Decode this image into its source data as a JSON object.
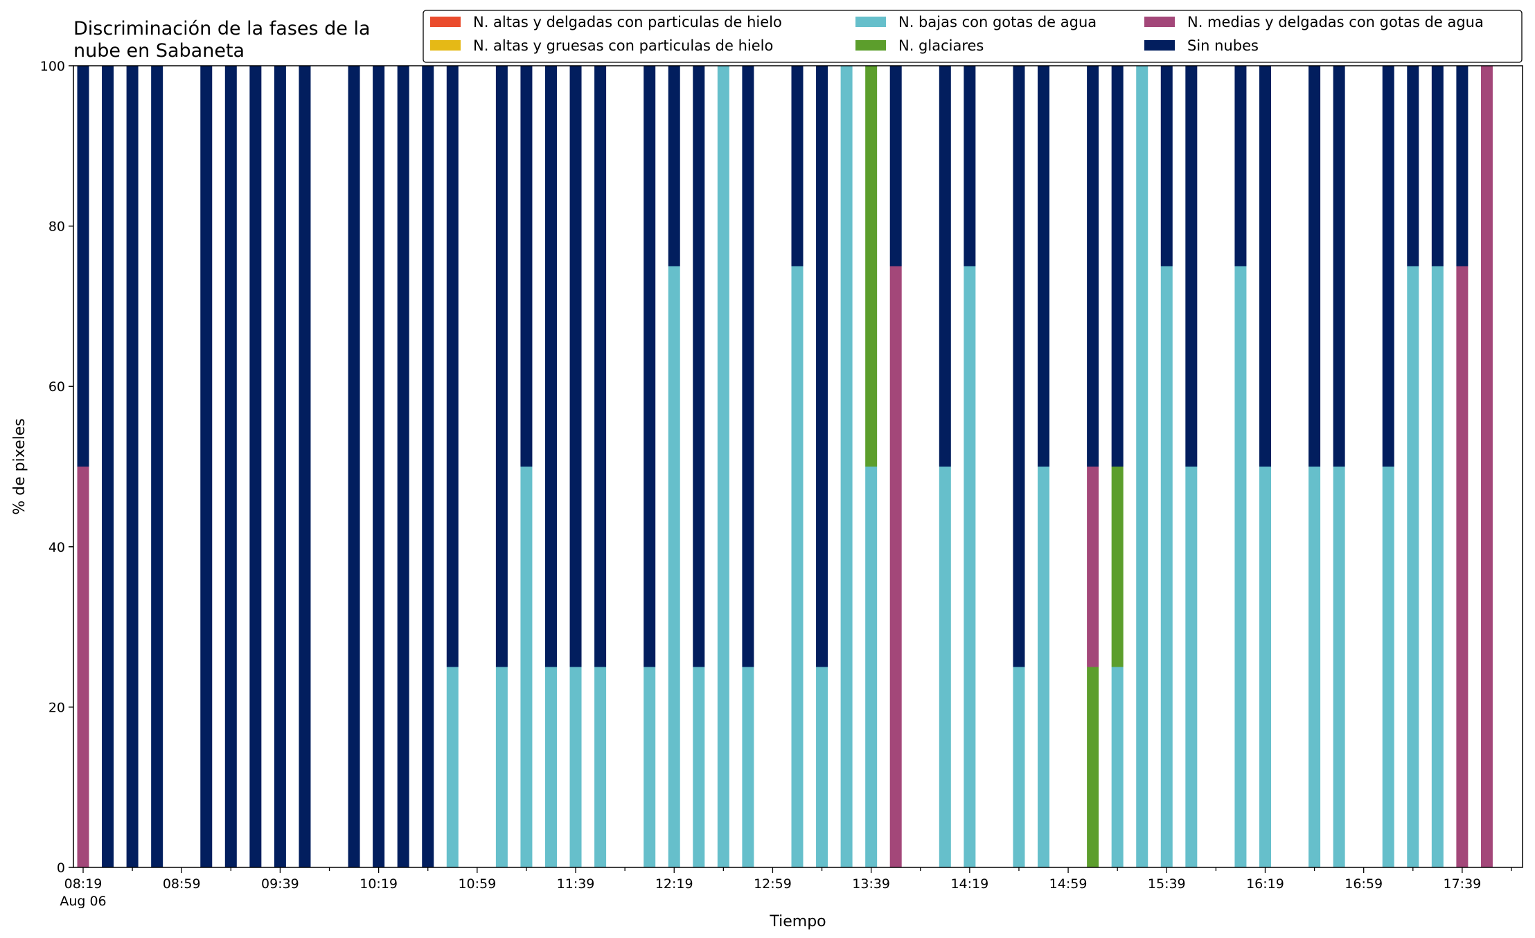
{
  "chart_data": {
    "type": "bar",
    "stacked": true,
    "title": "Discriminación de la fases de la\nnube en Sabaneta",
    "xlabel": "Tiempo",
    "ylabel": "% de pixeles",
    "ylim": [
      0,
      100
    ],
    "y_ticks": [
      0,
      20,
      40,
      60,
      80,
      100
    ],
    "x_tick_labels": [
      {
        "time": "08:19",
        "sub": "Aug 06"
      },
      {
        "time": "08:59",
        "sub": ""
      },
      {
        "time": "09:39",
        "sub": ""
      },
      {
        "time": "10:19",
        "sub": ""
      },
      {
        "time": "10:59",
        "sub": ""
      },
      {
        "time": "11:39",
        "sub": ""
      },
      {
        "time": "12:19",
        "sub": ""
      },
      {
        "time": "12:59",
        "sub": ""
      },
      {
        "time": "13:39",
        "sub": ""
      },
      {
        "time": "14:19",
        "sub": ""
      },
      {
        "time": "14:59",
        "sub": ""
      },
      {
        "time": "15:39",
        "sub": ""
      },
      {
        "time": "16:19",
        "sub": ""
      },
      {
        "time": "16:59",
        "sub": ""
      },
      {
        "time": "17:39",
        "sub": ""
      }
    ],
    "x_start": "08:19",
    "x_end": "18:00",
    "minor_tick_interval_minutes": 20,
    "legend_position": "top-right",
    "legend": [
      {
        "name": "N. altas y delgadas con particulas de hielo",
        "color": "#ea4c2d"
      },
      {
        "name": "N. altas y gruesas con particulas de hielo",
        "color": "#e5b916"
      },
      {
        "name": "N. bajas con gotas de agua",
        "color": "#66bfcb"
      },
      {
        "name": "N. glaciares",
        "color": "#5c9e2c"
      },
      {
        "name": "N. medias y delgadas con gotas de agua",
        "color": "#a34779"
      },
      {
        "name": "Sin nubes",
        "color": "#021e5e"
      }
    ],
    "bars": [
      {
        "time": "08:19",
        "segments": [
          [
            "N. medias y delgadas con gotas de agua",
            50
          ],
          [
            "Sin nubes",
            50
          ]
        ]
      },
      {
        "time": "08:29",
        "segments": [
          [
            "Sin nubes",
            100
          ]
        ]
      },
      {
        "time": "08:39",
        "segments": [
          [
            "Sin nubes",
            100
          ]
        ]
      },
      {
        "time": "08:49",
        "segments": [
          [
            "Sin nubes",
            100
          ]
        ]
      },
      {
        "time": "09:09",
        "segments": [
          [
            "Sin nubes",
            100
          ]
        ]
      },
      {
        "time": "09:19",
        "segments": [
          [
            "Sin nubes",
            100
          ]
        ]
      },
      {
        "time": "09:29",
        "segments": [
          [
            "Sin nubes",
            100
          ]
        ]
      },
      {
        "time": "09:39",
        "segments": [
          [
            "Sin nubes",
            100
          ]
        ]
      },
      {
        "time": "09:49",
        "segments": [
          [
            "Sin nubes",
            100
          ]
        ]
      },
      {
        "time": "10:09",
        "segments": [
          [
            "Sin nubes",
            100
          ]
        ]
      },
      {
        "time": "10:19",
        "segments": [
          [
            "Sin nubes",
            100
          ]
        ]
      },
      {
        "time": "10:29",
        "segments": [
          [
            "Sin nubes",
            100
          ]
        ]
      },
      {
        "time": "10:39",
        "segments": [
          [
            "Sin nubes",
            100
          ]
        ]
      },
      {
        "time": "10:49",
        "segments": [
          [
            "N. bajas con gotas de agua",
            25
          ],
          [
            "Sin nubes",
            75
          ]
        ]
      },
      {
        "time": "11:09",
        "segments": [
          [
            "N. bajas con gotas de agua",
            25
          ],
          [
            "Sin nubes",
            75
          ]
        ]
      },
      {
        "time": "11:19",
        "segments": [
          [
            "N. bajas con gotas de agua",
            50
          ],
          [
            "Sin nubes",
            50
          ]
        ]
      },
      {
        "time": "11:29",
        "segments": [
          [
            "N. bajas con gotas de agua",
            25
          ],
          [
            "Sin nubes",
            75
          ]
        ]
      },
      {
        "time": "11:39",
        "segments": [
          [
            "N. bajas con gotas de agua",
            25
          ],
          [
            "Sin nubes",
            75
          ]
        ]
      },
      {
        "time": "11:49",
        "segments": [
          [
            "N. bajas con gotas de agua",
            25
          ],
          [
            "Sin nubes",
            75
          ]
        ]
      },
      {
        "time": "12:09",
        "segments": [
          [
            "N. bajas con gotas de agua",
            25
          ],
          [
            "Sin nubes",
            75
          ]
        ]
      },
      {
        "time": "12:19",
        "segments": [
          [
            "N. bajas con gotas de agua",
            75
          ],
          [
            "Sin nubes",
            25
          ]
        ]
      },
      {
        "time": "12:29",
        "segments": [
          [
            "N. bajas con gotas de agua",
            25
          ],
          [
            "Sin nubes",
            75
          ]
        ]
      },
      {
        "time": "12:39",
        "segments": [
          [
            "N. bajas con gotas de agua",
            100
          ]
        ]
      },
      {
        "time": "12:49",
        "segments": [
          [
            "N. bajas con gotas de agua",
            25
          ],
          [
            "Sin nubes",
            75
          ]
        ]
      },
      {
        "time": "13:09",
        "segments": [
          [
            "N. bajas con gotas de agua",
            75
          ],
          [
            "Sin nubes",
            25
          ]
        ]
      },
      {
        "time": "13:19",
        "segments": [
          [
            "N. bajas con gotas de agua",
            25
          ],
          [
            "Sin nubes",
            75
          ]
        ]
      },
      {
        "time": "13:29",
        "segments": [
          [
            "N. bajas con gotas de agua",
            100
          ]
        ]
      },
      {
        "time": "13:39",
        "segments": [
          [
            "N. bajas con gotas de agua",
            50
          ],
          [
            "N. glaciares",
            50
          ]
        ]
      },
      {
        "time": "13:49",
        "segments": [
          [
            "N. medias y delgadas con gotas de agua",
            75
          ],
          [
            "Sin nubes",
            25
          ]
        ]
      },
      {
        "time": "14:09",
        "segments": [
          [
            "N. bajas con gotas de agua",
            50
          ],
          [
            "Sin nubes",
            50
          ]
        ]
      },
      {
        "time": "14:19",
        "segments": [
          [
            "N. bajas con gotas de agua",
            75
          ],
          [
            "Sin nubes",
            25
          ]
        ]
      },
      {
        "time": "14:39",
        "segments": [
          [
            "N. bajas con gotas de agua",
            25
          ],
          [
            "Sin nubes",
            75
          ]
        ]
      },
      {
        "time": "14:49",
        "segments": [
          [
            "N. bajas con gotas de agua",
            50
          ],
          [
            "Sin nubes",
            50
          ]
        ]
      },
      {
        "time": "15:09",
        "segments": [
          [
            "N. glaciares",
            25
          ],
          [
            "N. medias y delgadas con gotas de agua",
            25
          ],
          [
            "Sin nubes",
            50
          ]
        ]
      },
      {
        "time": "15:19",
        "segments": [
          [
            "N. bajas con gotas de agua",
            25
          ],
          [
            "N. glaciares",
            25
          ],
          [
            "Sin nubes",
            50
          ]
        ]
      },
      {
        "time": "15:29",
        "segments": [
          [
            "N. bajas con gotas de agua",
            100
          ]
        ]
      },
      {
        "time": "15:39",
        "segments": [
          [
            "N. bajas con gotas de agua",
            75
          ],
          [
            "Sin nubes",
            25
          ]
        ]
      },
      {
        "time": "15:49",
        "segments": [
          [
            "N. bajas con gotas de agua",
            50
          ],
          [
            "Sin nubes",
            50
          ]
        ]
      },
      {
        "time": "16:09",
        "segments": [
          [
            "N. bajas con gotas de agua",
            75
          ],
          [
            "Sin nubes",
            25
          ]
        ]
      },
      {
        "time": "16:19",
        "segments": [
          [
            "N. bajas con gotas de agua",
            50
          ],
          [
            "Sin nubes",
            50
          ]
        ]
      },
      {
        "time": "16:39",
        "segments": [
          [
            "N. bajas con gotas de agua",
            50
          ],
          [
            "Sin nubes",
            50
          ]
        ]
      },
      {
        "time": "16:49",
        "segments": [
          [
            "N. bajas con gotas de agua",
            50
          ],
          [
            "Sin nubes",
            50
          ]
        ]
      },
      {
        "time": "17:09",
        "segments": [
          [
            "N. bajas con gotas de agua",
            50
          ],
          [
            "Sin nubes",
            50
          ]
        ]
      },
      {
        "time": "17:19",
        "segments": [
          [
            "N. bajas con gotas de agua",
            75
          ],
          [
            "Sin nubes",
            25
          ]
        ]
      },
      {
        "time": "17:29",
        "segments": [
          [
            "N. bajas con gotas de agua",
            75
          ],
          [
            "Sin nubes",
            25
          ]
        ]
      },
      {
        "time": "17:39",
        "segments": [
          [
            "N. medias y delgadas con gotas de agua",
            75
          ],
          [
            "Sin nubes",
            25
          ]
        ]
      },
      {
        "time": "17:49",
        "segments": [
          [
            "N. medias y delgadas con gotas de agua",
            100
          ]
        ]
      }
    ]
  }
}
